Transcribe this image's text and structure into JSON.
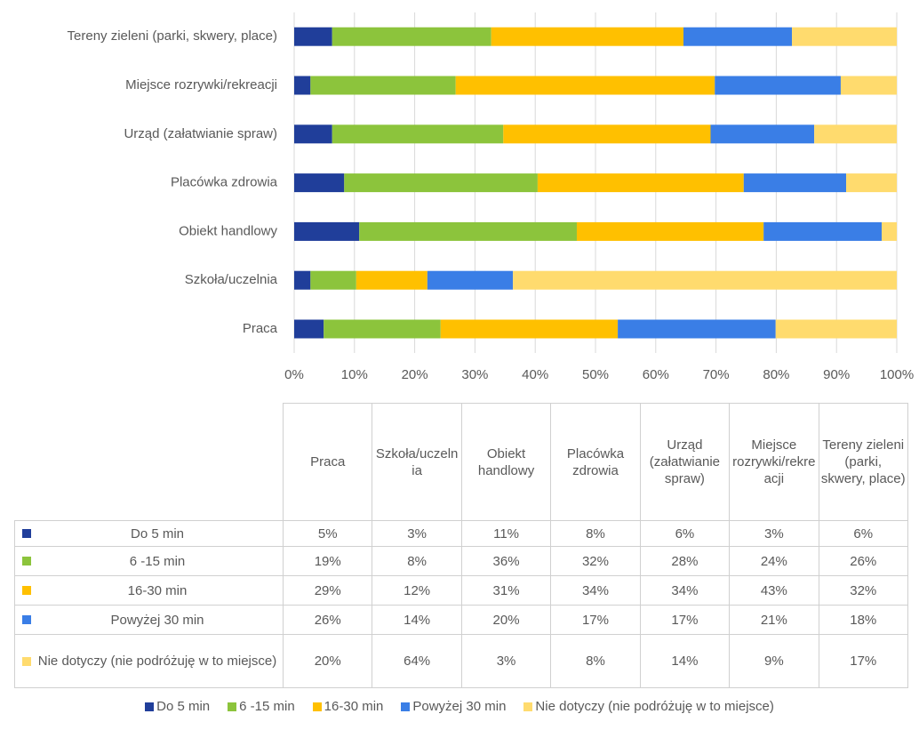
{
  "chart_data": {
    "type": "bar",
    "orientation": "horizontal",
    "stacked": true,
    "grid": true,
    "legend": "bottom",
    "categories": [
      "Praca",
      "Szkoła/uczelnia",
      "Obiekt handlowy",
      "Placówka zdrowia",
      "Urząd (załatwianie spraw)",
      "Miejsce rozrywki/rekreacji",
      "Tereny zieleni (parki, skwery, place)"
    ],
    "series": [
      {
        "name": "Do 5 min",
        "color": "#203e9a",
        "values": [
          4.9,
          2.7,
          10.8,
          8.3,
          6.3,
          2.7,
          6.3
        ],
        "value_labels": [
          "5%",
          "3%",
          "11%",
          "8%",
          "6%",
          "3%",
          "6%"
        ]
      },
      {
        "name": "6 -15 min",
        "color": "#8cc43c",
        "values": [
          19.4,
          7.6,
          36.1,
          32.1,
          28.4,
          24.1,
          26.4
        ],
        "value_labels": [
          "19%",
          "8%",
          "36%",
          "32%",
          "28%",
          "24%",
          "26%"
        ]
      },
      {
        "name": "16-30 min",
        "color": "#ffc000",
        "values": [
          29.4,
          11.8,
          31.0,
          34.2,
          34.4,
          43.0,
          31.9
        ],
        "value_labels": [
          "29%",
          "12%",
          "31%",
          "34%",
          "34%",
          "43%",
          "32%"
        ]
      },
      {
        "name": "Powyżej 30 min",
        "color": "#3a7ee6",
        "values": [
          26.2,
          14.2,
          19.6,
          17.0,
          17.2,
          20.9,
          18.0
        ],
        "value_labels": [
          "26%",
          "14%",
          "20%",
          "17%",
          "17%",
          "21%",
          "18%"
        ]
      },
      {
        "name": "Nie dotyczy (nie podróżuję w to miejsce)",
        "color": "#ffdb6e",
        "values": [
          20.1,
          63.7,
          2.5,
          8.4,
          13.7,
          9.3,
          17.4
        ],
        "value_labels": [
          "20%",
          "64%",
          "3%",
          "8%",
          "14%",
          "9%",
          "17%"
        ]
      }
    ],
    "xlim": [
      0,
      100
    ],
    "xticks": [
      {
        "value": 0,
        "label": "0%"
      },
      {
        "value": 10,
        "label": "10%"
      },
      {
        "value": 20,
        "label": "20%"
      },
      {
        "value": 30,
        "label": "30%"
      },
      {
        "value": 40,
        "label": "40%"
      },
      {
        "value": 50,
        "label": "50%"
      },
      {
        "value": 60,
        "label": "60%"
      },
      {
        "value": 70,
        "label": "70%"
      },
      {
        "value": 80,
        "label": "80%"
      },
      {
        "value": 90,
        "label": "90%"
      },
      {
        "value": 100,
        "label": "100%"
      }
    ]
  }
}
